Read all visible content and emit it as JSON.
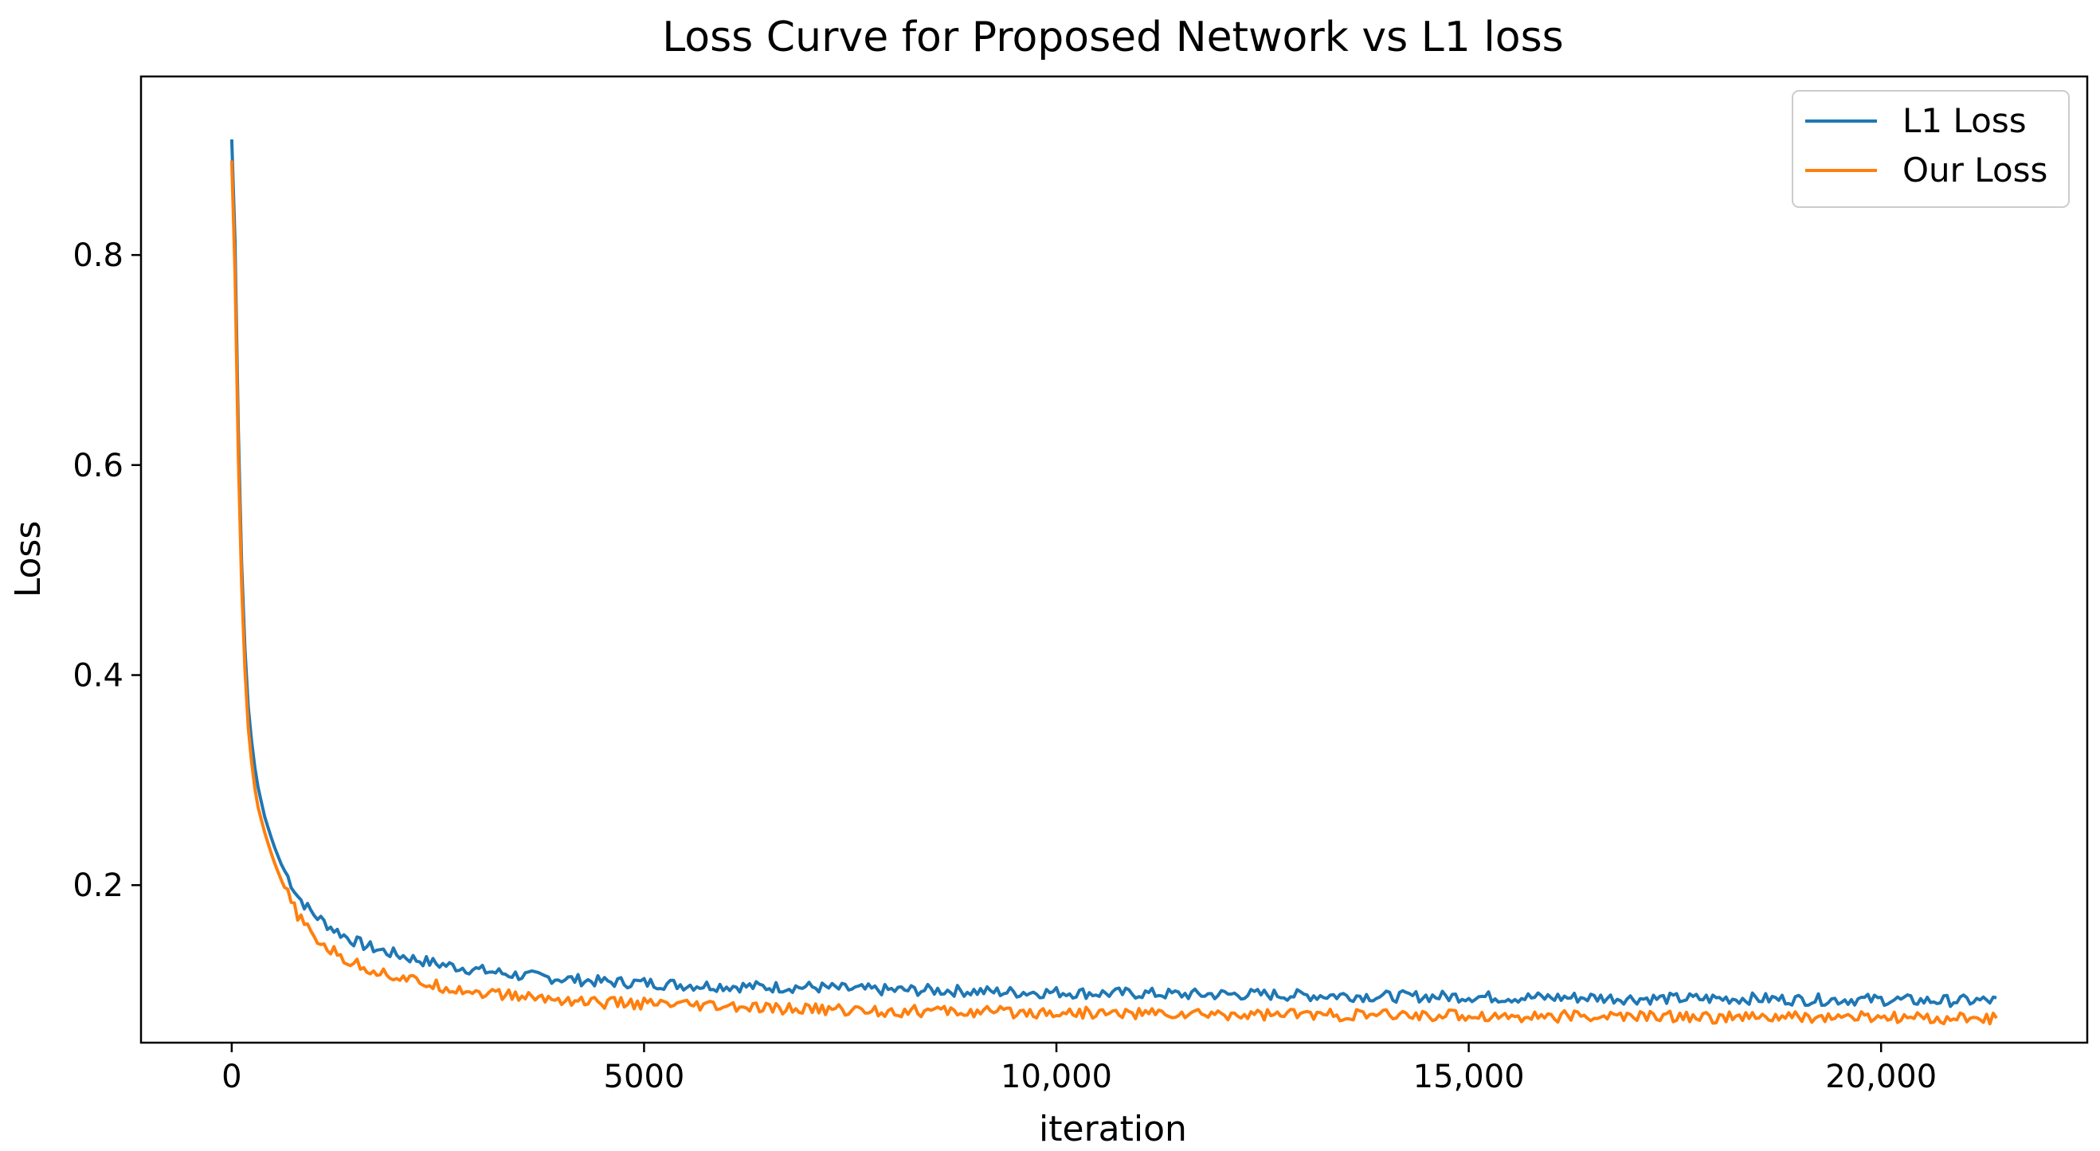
{
  "chart_data": {
    "type": "line",
    "title": "Loss Curve for Proposed Network vs L1 loss",
    "xlabel": "iteration",
    "ylabel": "Loss",
    "xlim": [
      -1100,
      22500
    ],
    "ylim": [
      0.05,
      0.97
    ],
    "xticks": [
      {
        "value": 0,
        "label": "0"
      },
      {
        "value": 5000,
        "label": "5000"
      },
      {
        "value": 10000,
        "label": "10,000"
      },
      {
        "value": 15000,
        "label": "15,000"
      },
      {
        "value": 20000,
        "label": "20,000"
      }
    ],
    "yticks": [
      {
        "value": 0.2,
        "label": "0.2"
      },
      {
        "value": 0.4,
        "label": "0.4"
      },
      {
        "value": 0.6,
        "label": "0.6"
      },
      {
        "value": 0.8,
        "label": "0.8"
      }
    ],
    "grid": false,
    "legend_position": "top-right",
    "series": [
      {
        "name": "L1 Loss",
        "color": "#1f77b4",
        "x": [
          0,
          30,
          60,
          100,
          150,
          200,
          250,
          300,
          400,
          500,
          600,
          700,
          800,
          900,
          1000,
          1200,
          1400,
          1600,
          1800,
          2000,
          2250,
          2500,
          2750,
          3000,
          3500,
          4000,
          4500,
          5000,
          5500,
          6000,
          6500,
          7000,
          7500,
          8000,
          8500,
          9000,
          9500,
          10000,
          10500,
          11000,
          11500,
          12000,
          12500,
          13000,
          13500,
          14000,
          14500,
          15000,
          15500,
          16000,
          16500,
          17000,
          17500,
          18000,
          18500,
          19000,
          19500,
          20000,
          20500,
          21000,
          21400
        ],
        "values": [
          0.91,
          0.86,
          0.72,
          0.55,
          0.44,
          0.37,
          0.33,
          0.3,
          0.265,
          0.24,
          0.22,
          0.205,
          0.19,
          0.18,
          0.172,
          0.16,
          0.15,
          0.143,
          0.138,
          0.134,
          0.129,
          0.125,
          0.122,
          0.119,
          0.114,
          0.111,
          0.108,
          0.107,
          0.105,
          0.104,
          0.103,
          0.103,
          0.101,
          0.1,
          0.1,
          0.099,
          0.098,
          0.098,
          0.097,
          0.097,
          0.096,
          0.096,
          0.096,
          0.095,
          0.095,
          0.094,
          0.094,
          0.094,
          0.093,
          0.093,
          0.093,
          0.092,
          0.092,
          0.092,
          0.092,
          0.091,
          0.091,
          0.091,
          0.09,
          0.09,
          0.09
        ]
      },
      {
        "name": "Our Loss",
        "color": "#ff7f0e",
        "x": [
          0,
          30,
          60,
          100,
          150,
          200,
          250,
          300,
          400,
          500,
          600,
          700,
          800,
          900,
          1000,
          1200,
          1400,
          1600,
          1800,
          2000,
          2250,
          2500,
          2750,
          3000,
          3500,
          4000,
          4500,
          5000,
          5500,
          6000,
          6500,
          7000,
          7500,
          8000,
          8500,
          9000,
          9500,
          10000,
          10500,
          11000,
          11500,
          12000,
          12500,
          13000,
          13500,
          14000,
          14500,
          15000,
          15500,
          16000,
          16500,
          17000,
          17500,
          18000,
          18500,
          19000,
          19500,
          20000,
          20500,
          21000,
          21400
        ],
        "values": [
          0.89,
          0.83,
          0.69,
          0.53,
          0.42,
          0.35,
          0.31,
          0.28,
          0.25,
          0.225,
          0.205,
          0.187,
          0.172,
          0.16,
          0.15,
          0.138,
          0.128,
          0.122,
          0.117,
          0.113,
          0.108,
          0.104,
          0.101,
          0.098,
          0.094,
          0.091,
          0.088,
          0.087,
          0.085,
          0.084,
          0.082,
          0.082,
          0.081,
          0.08,
          0.08,
          0.079,
          0.079,
          0.079,
          0.078,
          0.078,
          0.077,
          0.077,
          0.077,
          0.077,
          0.076,
          0.076,
          0.076,
          0.076,
          0.075,
          0.075,
          0.075,
          0.075,
          0.075,
          0.074,
          0.074,
          0.074,
          0.074,
          0.074,
          0.073,
          0.073,
          0.073
        ]
      }
    ]
  }
}
